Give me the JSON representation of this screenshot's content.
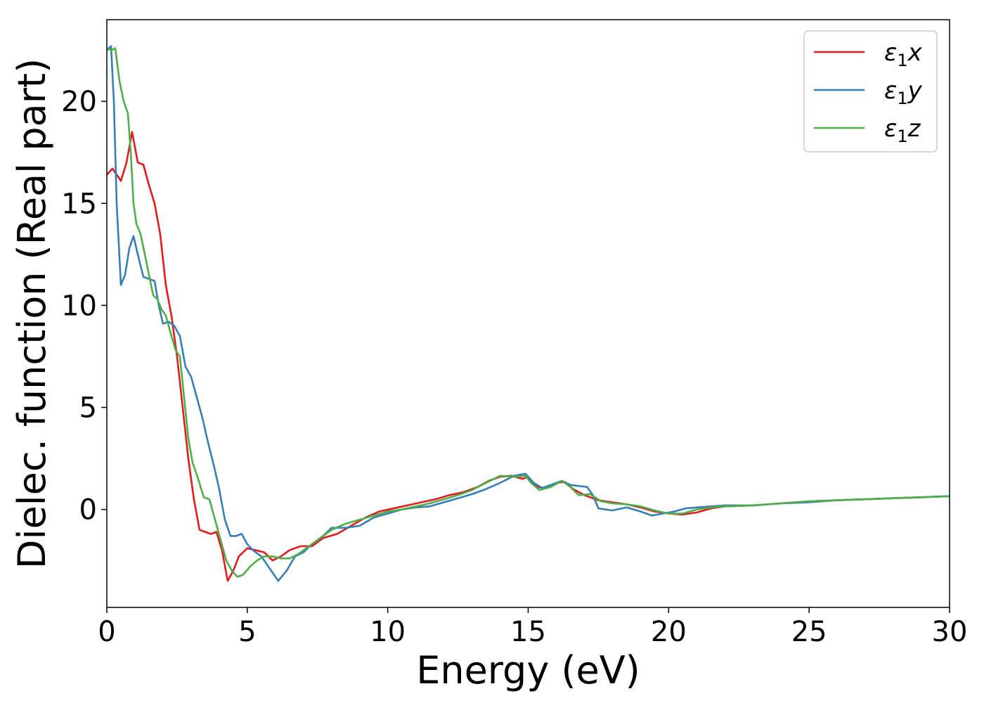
{
  "chart_data": {
    "type": "line",
    "title": "",
    "xlabel": "Energy (eV)",
    "ylabel": "Dielec. function (Real part)",
    "xlim": [
      0,
      30
    ],
    "ylim": [
      -4.8,
      24
    ],
    "xticks": [
      "0",
      "5",
      "10",
      "15",
      "20",
      "25",
      "30"
    ],
    "yticks": [
      "0",
      "5",
      "10",
      "15",
      "20"
    ],
    "grid": false,
    "legend_position": "top-right",
    "series": [
      {
        "name": "ε1x",
        "legend": {
          "symbol": "ε",
          "sub": "1",
          "axis": "x"
        },
        "color": "#e41a1c",
        "points": [
          [
            0,
            16.4
          ],
          [
            0.2,
            16.7
          ],
          [
            0.5,
            16.1
          ],
          [
            0.7,
            17.0
          ],
          [
            0.9,
            18.5
          ],
          [
            1.1,
            17.0
          ],
          [
            1.3,
            16.9
          ],
          [
            1.5,
            15.9
          ],
          [
            1.7,
            15.0
          ],
          [
            1.9,
            13.5
          ],
          [
            2.1,
            11.0
          ],
          [
            2.3,
            9.5
          ],
          [
            2.5,
            7.5
          ],
          [
            2.7,
            5.0
          ],
          [
            2.9,
            2.5
          ],
          [
            3.1,
            0.5
          ],
          [
            3.3,
            -1.0
          ],
          [
            3.5,
            -1.1
          ],
          [
            3.7,
            -1.2
          ],
          [
            3.9,
            -1.1
          ],
          [
            4.1,
            -2.0
          ],
          [
            4.3,
            -3.5
          ],
          [
            4.5,
            -3.0
          ],
          [
            4.7,
            -2.3
          ],
          [
            5.0,
            -1.9
          ],
          [
            5.3,
            -2.0
          ],
          [
            5.6,
            -2.1
          ],
          [
            5.9,
            -2.5
          ],
          [
            6.2,
            -2.3
          ],
          [
            6.5,
            -2.0
          ],
          [
            6.9,
            -1.8
          ],
          [
            7.3,
            -1.8
          ],
          [
            7.7,
            -1.4
          ],
          [
            8.2,
            -1.2
          ],
          [
            8.7,
            -0.8
          ],
          [
            9.2,
            -0.4
          ],
          [
            9.7,
            -0.1
          ],
          [
            10.2,
            0.05
          ],
          [
            10.7,
            0.2
          ],
          [
            11.2,
            0.35
          ],
          [
            11.7,
            0.5
          ],
          [
            12.2,
            0.7
          ],
          [
            12.7,
            0.85
          ],
          [
            13.2,
            1.1
          ],
          [
            13.6,
            1.4
          ],
          [
            14.0,
            1.6
          ],
          [
            14.4,
            1.65
          ],
          [
            14.8,
            1.5
          ],
          [
            15.0,
            1.6
          ],
          [
            15.3,
            1.1
          ],
          [
            15.6,
            1.05
          ],
          [
            16.0,
            1.3
          ],
          [
            16.3,
            1.35
          ],
          [
            16.6,
            1.0
          ],
          [
            17.0,
            0.7
          ],
          [
            17.5,
            0.45
          ],
          [
            18.0,
            0.35
          ],
          [
            18.5,
            0.25
          ],
          [
            19.0,
            0.1
          ],
          [
            19.5,
            -0.1
          ],
          [
            20.0,
            -0.2
          ],
          [
            20.5,
            -0.25
          ],
          [
            21.0,
            -0.15
          ],
          [
            21.5,
            0.05
          ],
          [
            22.0,
            0.15
          ],
          [
            23.0,
            0.2
          ],
          [
            24.0,
            0.3
          ],
          [
            25.0,
            0.4
          ],
          [
            26.0,
            0.45
          ],
          [
            27.0,
            0.5
          ],
          [
            28.0,
            0.55
          ],
          [
            29.0,
            0.6
          ],
          [
            30.0,
            0.65
          ]
        ]
      },
      {
        "name": "ε1y",
        "legend": {
          "symbol": "ε",
          "sub": "1",
          "axis": "y"
        },
        "color": "#377eb8",
        "points": [
          [
            0,
            22.5
          ],
          [
            0.15,
            22.7
          ],
          [
            0.25,
            20.0
          ],
          [
            0.35,
            15.0
          ],
          [
            0.5,
            11.0
          ],
          [
            0.65,
            11.5
          ],
          [
            0.8,
            12.8
          ],
          [
            0.95,
            13.4
          ],
          [
            1.1,
            12.5
          ],
          [
            1.3,
            11.4
          ],
          [
            1.5,
            11.3
          ],
          [
            1.7,
            11.2
          ],
          [
            1.85,
            10.0
          ],
          [
            2.0,
            9.1
          ],
          [
            2.2,
            9.2
          ],
          [
            2.4,
            9.0
          ],
          [
            2.6,
            8.5
          ],
          [
            2.8,
            7.0
          ],
          [
            3.0,
            6.5
          ],
          [
            3.2,
            5.5
          ],
          [
            3.4,
            4.5
          ],
          [
            3.6,
            3.3
          ],
          [
            3.8,
            2.2
          ],
          [
            4.0,
            1.0
          ],
          [
            4.2,
            -0.5
          ],
          [
            4.4,
            -1.3
          ],
          [
            4.6,
            -1.3
          ],
          [
            4.8,
            -1.2
          ],
          [
            5.0,
            -1.7
          ],
          [
            5.2,
            -2.0
          ],
          [
            5.5,
            -2.3
          ],
          [
            5.8,
            -2.9
          ],
          [
            6.1,
            -3.5
          ],
          [
            6.4,
            -3.0
          ],
          [
            6.7,
            -2.3
          ],
          [
            7.0,
            -2.1
          ],
          [
            7.3,
            -1.7
          ],
          [
            7.7,
            -1.3
          ],
          [
            8.0,
            -0.9
          ],
          [
            8.5,
            -0.9
          ],
          [
            9.0,
            -0.8
          ],
          [
            9.5,
            -0.4
          ],
          [
            10.0,
            -0.2
          ],
          [
            10.5,
            0.0
          ],
          [
            11.0,
            0.1
          ],
          [
            11.5,
            0.15
          ],
          [
            12.0,
            0.35
          ],
          [
            12.5,
            0.55
          ],
          [
            13.0,
            0.75
          ],
          [
            13.5,
            1.0
          ],
          [
            14.0,
            1.3
          ],
          [
            14.5,
            1.65
          ],
          [
            14.9,
            1.75
          ],
          [
            15.2,
            1.3
          ],
          [
            15.5,
            1.05
          ],
          [
            15.8,
            1.2
          ],
          [
            16.2,
            1.4
          ],
          [
            16.5,
            1.2
          ],
          [
            16.8,
            1.15
          ],
          [
            17.1,
            1.1
          ],
          [
            17.3,
            0.7
          ],
          [
            17.5,
            0.05
          ],
          [
            18.0,
            -0.05
          ],
          [
            18.5,
            0.1
          ],
          [
            19.0,
            -0.1
          ],
          [
            19.4,
            -0.3
          ],
          [
            19.8,
            -0.2
          ],
          [
            20.2,
            -0.1
          ],
          [
            20.6,
            0.05
          ],
          [
            21.0,
            0.1
          ],
          [
            22.0,
            0.2
          ],
          [
            23.0,
            0.2
          ],
          [
            24.0,
            0.3
          ],
          [
            25.0,
            0.35
          ],
          [
            26.0,
            0.45
          ],
          [
            27.0,
            0.5
          ],
          [
            28.0,
            0.55
          ],
          [
            29.0,
            0.6
          ],
          [
            30.0,
            0.65
          ]
        ]
      },
      {
        "name": "ε1z",
        "legend": {
          "symbol": "ε",
          "sub": "1",
          "axis": "z"
        },
        "color": "#4daf4a",
        "points": [
          [
            0,
            22.6
          ],
          [
            0.15,
            22.5
          ],
          [
            0.3,
            22.6
          ],
          [
            0.45,
            21.0
          ],
          [
            0.6,
            20.0
          ],
          [
            0.75,
            19.4
          ],
          [
            0.85,
            17.5
          ],
          [
            0.95,
            15.0
          ],
          [
            1.05,
            14.0
          ],
          [
            1.2,
            13.5
          ],
          [
            1.35,
            12.5
          ],
          [
            1.5,
            11.5
          ],
          [
            1.65,
            10.5
          ],
          [
            1.8,
            10.3
          ],
          [
            1.95,
            9.8
          ],
          [
            2.1,
            9.5
          ],
          [
            2.3,
            8.5
          ],
          [
            2.45,
            7.8
          ],
          [
            2.6,
            7.5
          ],
          [
            2.75,
            5.5
          ],
          [
            2.9,
            3.5
          ],
          [
            3.05,
            2.3
          ],
          [
            3.25,
            1.5
          ],
          [
            3.45,
            0.6
          ],
          [
            3.65,
            0.5
          ],
          [
            3.85,
            -0.5
          ],
          [
            4.05,
            -1.5
          ],
          [
            4.25,
            -2.5
          ],
          [
            4.45,
            -3.0
          ],
          [
            4.65,
            -3.3
          ],
          [
            4.85,
            -3.2
          ],
          [
            5.1,
            -2.8
          ],
          [
            5.35,
            -2.5
          ],
          [
            5.6,
            -2.3
          ],
          [
            5.9,
            -2.3
          ],
          [
            6.2,
            -2.4
          ],
          [
            6.5,
            -2.4
          ],
          [
            6.8,
            -2.2
          ],
          [
            7.1,
            -1.9
          ],
          [
            7.5,
            -1.5
          ],
          [
            8.0,
            -1.0
          ],
          [
            8.5,
            -0.7
          ],
          [
            9.0,
            -0.5
          ],
          [
            9.5,
            -0.3
          ],
          [
            10.0,
            -0.1
          ],
          [
            10.5,
            0.0
          ],
          [
            11.0,
            0.15
          ],
          [
            11.5,
            0.3
          ],
          [
            12.0,
            0.5
          ],
          [
            12.5,
            0.7
          ],
          [
            13.0,
            0.95
          ],
          [
            13.5,
            1.3
          ],
          [
            14.0,
            1.65
          ],
          [
            14.5,
            1.6
          ],
          [
            14.9,
            1.65
          ],
          [
            15.1,
            1.3
          ],
          [
            15.4,
            0.95
          ],
          [
            15.8,
            1.1
          ],
          [
            16.2,
            1.4
          ],
          [
            16.5,
            1.1
          ],
          [
            16.8,
            0.7
          ],
          [
            17.2,
            0.75
          ],
          [
            17.6,
            0.4
          ],
          [
            18.0,
            0.3
          ],
          [
            18.5,
            0.25
          ],
          [
            19.0,
            0.15
          ],
          [
            19.5,
            -0.05
          ],
          [
            20.0,
            -0.2
          ],
          [
            20.5,
            -0.2
          ],
          [
            21.0,
            0.0
          ],
          [
            21.5,
            0.1
          ],
          [
            22.0,
            0.15
          ],
          [
            23.0,
            0.2
          ],
          [
            24.0,
            0.3
          ],
          [
            25.0,
            0.4
          ],
          [
            26.0,
            0.45
          ],
          [
            27.0,
            0.5
          ],
          [
            28.0,
            0.55
          ],
          [
            29.0,
            0.6
          ],
          [
            30.0,
            0.65
          ]
        ]
      }
    ]
  }
}
